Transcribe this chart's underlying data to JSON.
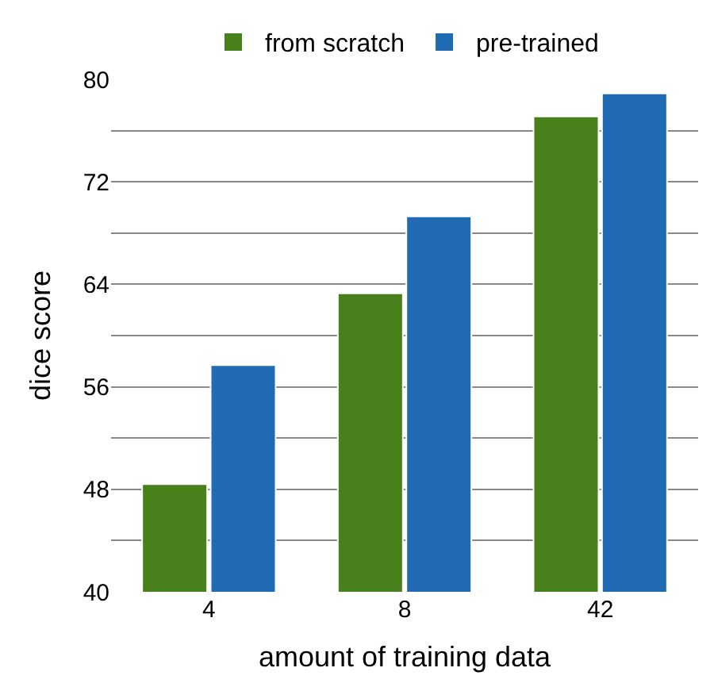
{
  "chart_data": {
    "type": "bar",
    "xlabel": "amount of training data",
    "ylabel": "dice score",
    "categories": [
      "4",
      "8",
      "42"
    ],
    "series": [
      {
        "name": "from scratch",
        "color": "#48801c",
        "values": [
          48.4,
          63.3,
          77.1
        ]
      },
      {
        "name": "pre-trained",
        "color": "#216ab4",
        "values": [
          57.7,
          69.3,
          78.9
        ]
      }
    ],
    "ylim": [
      40,
      80
    ],
    "yticks": [
      40,
      {
        "value": 44,
        "label": null
      },
      48,
      {
        "value": 52,
        "label": null
      },
      56,
      {
        "value": 60,
        "label": null
      },
      64,
      {
        "value": 68,
        "label": null
      },
      72,
      {
        "value": 76,
        "label": null
      },
      80
    ],
    "grid": "y",
    "legend": "top"
  }
}
